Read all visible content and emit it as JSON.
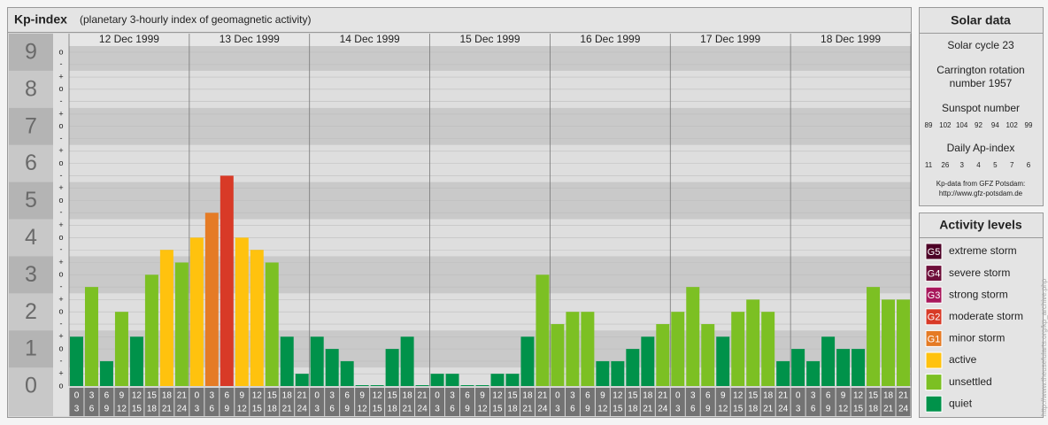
{
  "chart_data": {
    "type": "bar",
    "title": "Kp-index",
    "subtitle": "(planetary 3-hourly index of geomagnetic activity)",
    "ylim": [
      0,
      9.5
    ],
    "yticks": [
      0,
      1,
      2,
      3,
      4,
      5,
      6,
      7,
      8,
      9
    ],
    "yticks_minor": [
      {
        "value": 0,
        "label": "o"
      },
      {
        "value": 0.33,
        "label": "+"
      },
      {
        "value": 0.67,
        "label": "-"
      },
      {
        "value": 1,
        "label": "o"
      },
      {
        "value": 1.33,
        "label": "+"
      },
      {
        "value": 1.67,
        "label": "-"
      },
      {
        "value": 2,
        "label": "o"
      },
      {
        "value": 2.33,
        "label": "+"
      },
      {
        "value": 2.67,
        "label": "-"
      },
      {
        "value": 3,
        "label": "o"
      },
      {
        "value": 3.33,
        "label": "+"
      },
      {
        "value": 3.67,
        "label": "-"
      },
      {
        "value": 4,
        "label": "o"
      },
      {
        "value": 4.33,
        "label": "+"
      },
      {
        "value": 4.67,
        "label": "-"
      },
      {
        "value": 5,
        "label": "o"
      },
      {
        "value": 5.33,
        "label": "+"
      },
      {
        "value": 5.67,
        "label": "-"
      },
      {
        "value": 6,
        "label": "o"
      },
      {
        "value": 6.33,
        "label": "+"
      },
      {
        "value": 6.67,
        "label": "-"
      },
      {
        "value": 7,
        "label": "o"
      },
      {
        "value": 7.33,
        "label": "+"
      },
      {
        "value": 7.67,
        "label": "-"
      },
      {
        "value": 8,
        "label": "o"
      },
      {
        "value": 8.33,
        "label": "+"
      },
      {
        "value": 8.67,
        "label": "-"
      },
      {
        "value": 9,
        "label": "o"
      }
    ],
    "hour_ticks": [
      0,
      3,
      6,
      9,
      12,
      15,
      18,
      21,
      24
    ],
    "days": [
      {
        "date": "12 Dec 1999",
        "values": [
          1.33,
          2.67,
          0.67,
          2,
          1.33,
          3,
          3.67,
          3.33
        ],
        "colors": [
          "#00924a",
          "#7cc023",
          "#00924a",
          "#7cc023",
          "#00924a",
          "#7cc023",
          "#ffc20e",
          "#7cc023"
        ]
      },
      {
        "date": "13 Dec 1999",
        "values": [
          4,
          4.67,
          5.67,
          4,
          3.67,
          3.33,
          1.33,
          0.33
        ],
        "colors": [
          "#ffc20e",
          "#e57b25",
          "#d83a27",
          "#ffc20e",
          "#ffc20e",
          "#7cc023",
          "#00924a",
          "#00924a"
        ]
      },
      {
        "date": "14 Dec 1999",
        "values": [
          1.33,
          1,
          0.67,
          0,
          0,
          1,
          1.33,
          0
        ],
        "colors": [
          "#00924a",
          "#00924a",
          "#00924a",
          "#00924a",
          "#00924a",
          "#00924a",
          "#00924a",
          "#00924a"
        ]
      },
      {
        "date": "15 Dec 1999",
        "values": [
          0.33,
          0.33,
          0,
          0,
          0.33,
          0.33,
          1.33,
          3
        ],
        "colors": [
          "#00924a",
          "#00924a",
          "#00924a",
          "#00924a",
          "#00924a",
          "#00924a",
          "#00924a",
          "#7cc023"
        ]
      },
      {
        "date": "16 Dec 1999",
        "values": [
          1.67,
          2,
          2,
          0.67,
          0.67,
          1,
          1.33,
          1.67
        ],
        "colors": [
          "#7cc023",
          "#7cc023",
          "#7cc023",
          "#00924a",
          "#00924a",
          "#00924a",
          "#00924a",
          "#7cc023"
        ]
      },
      {
        "date": "17 Dec 1999",
        "values": [
          2,
          2.67,
          1.67,
          1.33,
          2,
          2.33,
          2,
          0.67
        ],
        "colors": [
          "#7cc023",
          "#7cc023",
          "#7cc023",
          "#00924a",
          "#7cc023",
          "#7cc023",
          "#7cc023",
          "#00924a"
        ]
      },
      {
        "date": "18 Dec 1999",
        "values": [
          1,
          0.67,
          1.33,
          1,
          1,
          2.67,
          2.33,
          2.33
        ],
        "colors": [
          "#00924a",
          "#00924a",
          "#00924a",
          "#00924a",
          "#00924a",
          "#7cc023",
          "#7cc023",
          "#7cc023"
        ]
      }
    ],
    "legend_title": "Activity levels",
    "levels": [
      {
        "code": "G5",
        "name": "extreme storm",
        "color": "#4d0026"
      },
      {
        "code": "G4",
        "name": "severe storm",
        "color": "#6e0f3a"
      },
      {
        "code": "G3",
        "name": "strong storm",
        "color": "#a8175b"
      },
      {
        "code": "G2",
        "name": "moderate storm",
        "color": "#d83a27"
      },
      {
        "code": "G1",
        "name": "minor storm",
        "color": "#e57b25"
      },
      {
        "name": "active",
        "color": "#ffc20e"
      },
      {
        "name": "unsettled",
        "color": "#7cc023"
      },
      {
        "name": "quiet",
        "color": "#00924a"
      }
    ]
  },
  "solar_data": {
    "title": "Solar data",
    "solar_cycle": "Solar cycle 23",
    "carrington": [
      "Carrington rotation",
      "number 1957"
    ],
    "sunspot_title": "Sunspot number",
    "sunspots": [
      89,
      102,
      104,
      92,
      94,
      102,
      99
    ],
    "ap_title": "Daily Ap-index",
    "ap": [
      11,
      26,
      3,
      4,
      5,
      7,
      6
    ],
    "source": [
      "Kp-data from GFZ Potsdam:",
      "http://www.gfz-potsdam.de"
    ]
  },
  "side_url": "http://www.theusefularts.org/kp_archive.php"
}
